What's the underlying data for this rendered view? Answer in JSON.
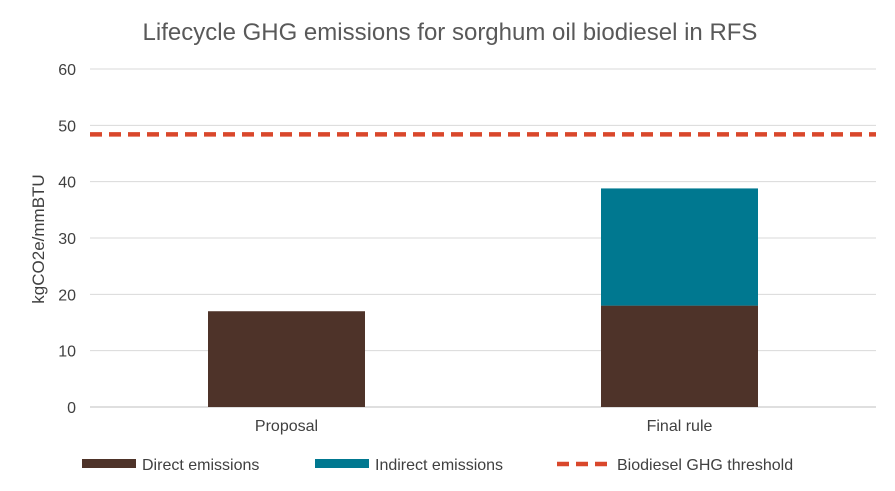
{
  "chart_data": {
    "type": "bar",
    "stacked": true,
    "title": "Lifecycle GHG emissions for sorghum oil biodiesel in RFS",
    "xlabel": "",
    "ylabel": "kgCO2e/mmBTU",
    "ylim": [
      0,
      60
    ],
    "yticks": [
      "0",
      "10",
      "20",
      "30",
      "40",
      "50",
      "60"
    ],
    "categories": [
      "Proposal",
      "Final rule"
    ],
    "series": [
      {
        "name": "Direct emissions",
        "values": [
          17,
          18
        ],
        "color": "#4e3329"
      },
      {
        "name": "Indirect emissions",
        "values": [
          0,
          20.8
        ],
        "color": "#007890"
      }
    ],
    "reference_line": {
      "name": "Biodiesel GHG threshold",
      "value": 48.4,
      "color": "#d9472b",
      "style": "dashed"
    },
    "grid": true,
    "legend_position": "bottom"
  }
}
